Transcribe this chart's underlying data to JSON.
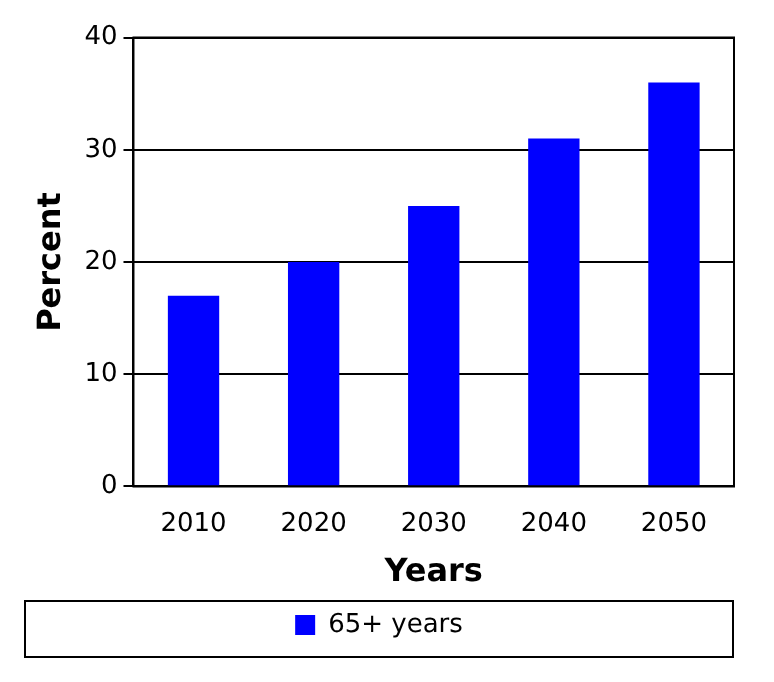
{
  "chart_data": {
    "type": "bar",
    "xlabel": "Years",
    "ylabel": "Percent",
    "categories": [
      "2010",
      "2020",
      "2030",
      "2040",
      "2050"
    ],
    "series": [
      {
        "name": "65+ years",
        "color": "#0000ff",
        "values": [
          17,
          20,
          25,
          31,
          36
        ]
      }
    ],
    "ylim": [
      0,
      40
    ],
    "yticks": [
      0,
      10,
      20,
      30,
      40
    ],
    "grid": "y",
    "legend": "bottom"
  }
}
